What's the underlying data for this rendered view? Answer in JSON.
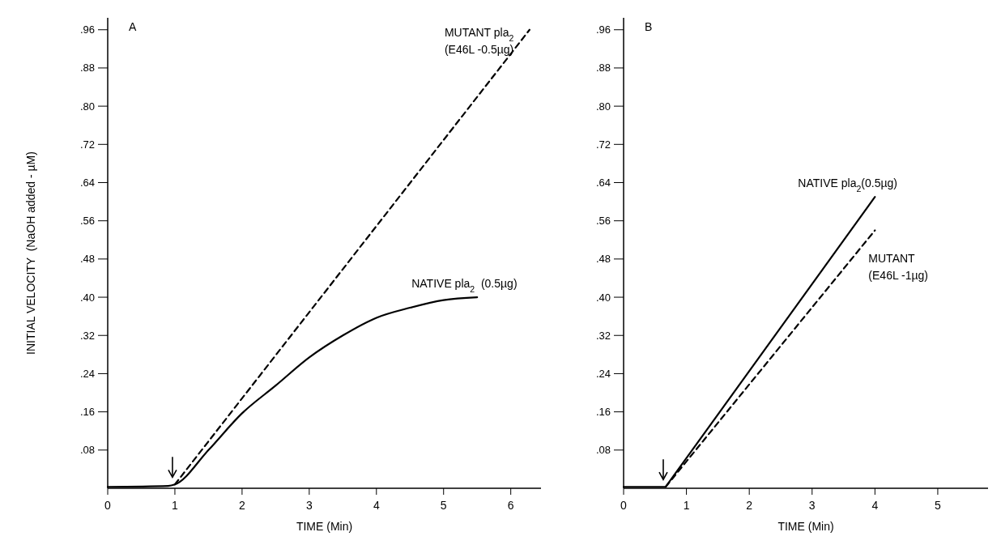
{
  "chart_data": [
    {
      "type": "line",
      "xlabel": "TIME (Min)",
      "ylabel": "INITIAL VELOCITY  (NaOH added - µM)",
      "xlim": [
        0,
        6.45
      ],
      "xticks": [
        0,
        1,
        2,
        3,
        4,
        5,
        6
      ],
      "ylim": [
        0,
        0.985
      ],
      "yticks": [
        {
          "value": 0.08,
          "label": ".08"
        },
        {
          "value": 0.16,
          "label": ".16"
        },
        {
          "value": 0.24,
          "label": ".24"
        },
        {
          "value": 0.32,
          "label": ".32"
        },
        {
          "value": 0.4,
          "label": ".40"
        },
        {
          "value": 0.48,
          "label": ".48"
        },
        {
          "value": 0.56,
          "label": ".56"
        },
        {
          "value": 0.64,
          "label": ".64"
        },
        {
          "value": 0.72,
          "label": ".72"
        },
        {
          "value": 0.8,
          "label": ".80"
        },
        {
          "value": 0.88,
          "label": ".88"
        },
        {
          "value": 0.96,
          "label": ".96"
        }
      ],
      "grid": false,
      "marker": "none",
      "annotations": [
        "A"
      ],
      "series": [
        {
          "name": "NATIVE pla$_{2}$  (0.5µg)",
          "color": "#000000",
          "line_style": "solid",
          "x": [
            0,
            0.9,
            1,
            1.5,
            2,
            2.5,
            3,
            3.5,
            4,
            4.5,
            5,
            5.5
          ],
          "values": [
            0.003,
            0.005,
            0.008,
            0.08,
            0.157,
            0.215,
            0.274,
            0.32,
            0.357,
            0.378,
            0.394,
            0.4
          ]
        },
        {
          "name": "MUTANT pla$_{2}$\n(E46L -0.5µg)",
          "color": "#000000",
          "line_style": "dashed",
          "x": [
            1,
            6.28
          ],
          "values": [
            0.008,
            0.96
          ]
        }
      ]
    },
    {
      "type": "line",
      "xlabel": "TIME (Min)",
      "xlim": [
        0,
        5.8
      ],
      "xticks": [
        0,
        1,
        2,
        3,
        4,
        5
      ],
      "ylim": [
        0,
        0.985
      ],
      "yticks": [
        {
          "value": 0.08,
          "label": ".08"
        },
        {
          "value": 0.16,
          "label": ".16"
        },
        {
          "value": 0.24,
          "label": ".24"
        },
        {
          "value": 0.32,
          "label": ".32"
        },
        {
          "value": 0.4,
          "label": ".40"
        },
        {
          "value": 0.48,
          "label": ".48"
        },
        {
          "value": 0.56,
          "label": ".56"
        },
        {
          "value": 0.64,
          "label": ".64"
        },
        {
          "value": 0.72,
          "label": ".72"
        },
        {
          "value": 0.8,
          "label": ".80"
        },
        {
          "value": 0.88,
          "label": ".88"
        },
        {
          "value": 0.96,
          "label": ".96"
        }
      ],
      "grid": false,
      "marker": "none",
      "annotations": [
        "B"
      ],
      "series": [
        {
          "name": "NATIVE pla$_{2}$(0.5µg)",
          "color": "#000000",
          "line_style": "solid",
          "x": [
            0,
            0.67,
            4
          ],
          "values": [
            0.003,
            0.003,
            0.61
          ]
        },
        {
          "name": "MUTANT\n(E46L -1µg)",
          "color": "#000000",
          "line_style": "dashed",
          "x": [
            0.67,
            4
          ],
          "values": [
            0.003,
            0.54
          ]
        }
      ]
    }
  ]
}
